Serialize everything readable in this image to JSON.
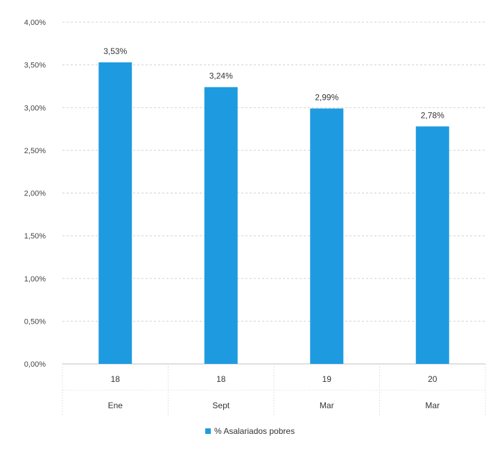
{
  "chart_data": {
    "type": "bar",
    "title": "",
    "xlabel": "",
    "ylabel": "",
    "categories": [
      {
        "year": "18",
        "month": "Ene"
      },
      {
        "year": "18",
        "month": "Sept"
      },
      {
        "year": "19",
        "month": "Mar"
      },
      {
        "year": "20",
        "month": "Mar"
      }
    ],
    "series": [
      {
        "name": "% Asalariados pobres",
        "color": "#1e9be0",
        "values": [
          3.53,
          3.24,
          2.99,
          2.78
        ],
        "labels": [
          "3,53%",
          "3,24%",
          "2,99%",
          "2,78%"
        ]
      }
    ],
    "ylim": [
      0,
      4
    ],
    "yticks": [
      "0,00%",
      "0,50%",
      "1,00%",
      "1,50%",
      "2,00%",
      "2,50%",
      "3,00%",
      "3,50%",
      "4,00%"
    ],
    "ytick_values": [
      0,
      0.5,
      1,
      1.5,
      2,
      2.5,
      3,
      3.5,
      4
    ],
    "grid": true,
    "legend": "bottom"
  }
}
